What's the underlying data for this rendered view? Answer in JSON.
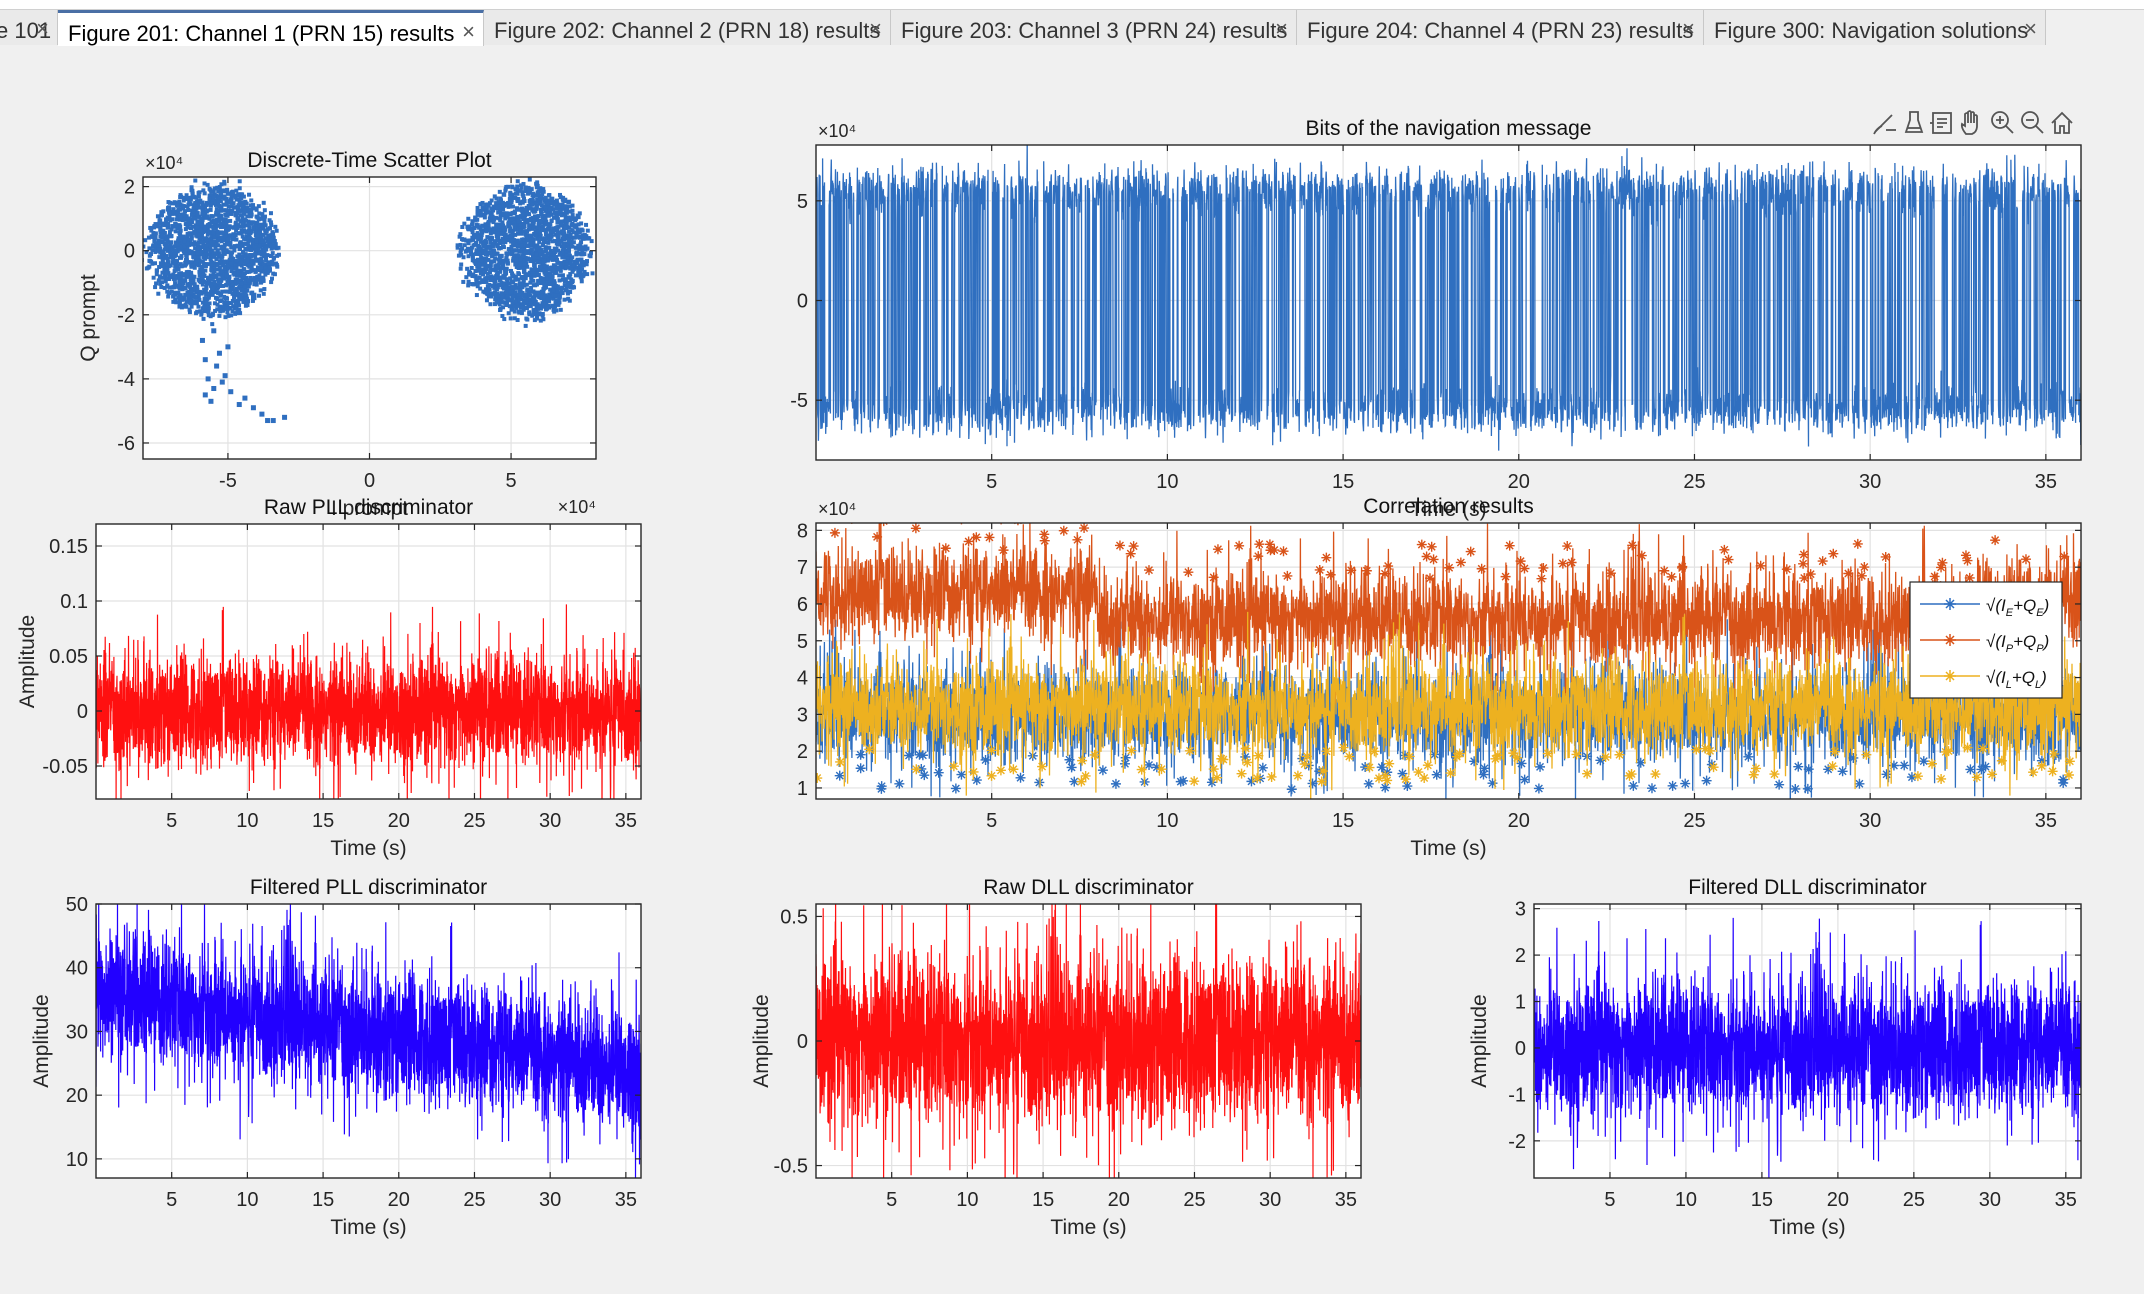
{
  "tabs": [
    {
      "label": "e 101",
      "active": false
    },
    {
      "label": "Figure 201: Channel 1 (PRN 15) results",
      "active": true
    },
    {
      "label": "Figure 202: Channel 2 (PRN 18) results",
      "active": false
    },
    {
      "label": "Figure 203: Channel 3 (PRN 24) results",
      "active": false
    },
    {
      "label": "Figure 204: Channel 4 (PRN 23) results",
      "active": false
    },
    {
      "label": "Figure 300: Navigation solutions",
      "active": false
    }
  ],
  "toolbar_icons": [
    "brush-icon",
    "eraser-icon",
    "data-tip-icon",
    "pan-hand-icon",
    "zoom-in-icon",
    "zoom-out-icon",
    "home-icon"
  ],
  "colors": {
    "blue": "#2f6fc0",
    "red": "#ff1010",
    "violet": "#2200ff",
    "orange": "#d95319",
    "yellow": "#edb120",
    "legend_blue": "#0072bd"
  },
  "chart_data": [
    {
      "id": "scatter",
      "type": "scatter",
      "title": "Discrete-Time Scatter Plot",
      "xlabel": "I prompt",
      "ylabel": "Q prompt",
      "x_exponent_label": "×10⁴",
      "y_exponent_label": "×10⁴",
      "xlim": [
        -8,
        8
      ],
      "ylim": [
        -6.5,
        2.3
      ],
      "xticks": [
        -5,
        0,
        5
      ],
      "yticks": [
        -6,
        -4,
        -2,
        0,
        2
      ],
      "grid": true,
      "clusters": [
        {
          "center": [
            -5.5,
            0
          ],
          "radius": [
            2.2,
            2.0
          ],
          "points": 1800
        },
        {
          "center": [
            5.5,
            0
          ],
          "radius": [
            2.2,
            2.0
          ],
          "points": 1800
        }
      ],
      "outliers": [
        [
          -5.5,
          -2.5
        ],
        [
          -5.9,
          -2.8
        ],
        [
          -5.0,
          -3.0
        ],
        [
          -5.3,
          -3.2
        ],
        [
          -5.8,
          -3.4
        ],
        [
          -5.4,
          -3.6
        ],
        [
          -5.1,
          -3.9
        ],
        [
          -5.7,
          -4.0
        ],
        [
          -5.2,
          -4.1
        ],
        [
          -5.5,
          -4.3
        ],
        [
          -5.8,
          -4.5
        ],
        [
          -4.9,
          -4.4
        ],
        [
          -5.6,
          -4.7
        ],
        [
          -4.6,
          -4.8
        ],
        [
          -4.1,
          -4.9
        ],
        [
          -3.8,
          -5.1
        ],
        [
          -3.4,
          -5.3
        ],
        [
          -3.0,
          -5.2
        ],
        [
          -3.6,
          -5.3
        ],
        [
          -4.4,
          -4.6
        ]
      ]
    },
    {
      "id": "navbits",
      "type": "line",
      "title": "Bits of the navigation message",
      "xlabel": "Time (s)",
      "ylabel": "",
      "y_exponent_label": "×10⁴",
      "xlim": [
        0,
        36
      ],
      "ylim": [
        -8,
        7.8
      ],
      "xticks": [
        5,
        10,
        15,
        20,
        25,
        30,
        35
      ],
      "yticks": [
        -5,
        0,
        5
      ],
      "grid": true,
      "levels": [
        5.5,
        -5.5
      ],
      "noise": 1.0
    },
    {
      "id": "rawpll",
      "type": "line",
      "title": "Raw PLL discriminator",
      "xlabel": "Time (s)",
      "ylabel": "Amplitude",
      "xlim": [
        0,
        36
      ],
      "ylim": [
        -0.08,
        0.17
      ],
      "xticks": [
        5,
        10,
        15,
        20,
        25,
        30,
        35
      ],
      "yticks": [
        -0.05,
        0,
        0.05,
        0.1,
        0.15
      ],
      "ytick_labels": [
        "-0.05",
        "0",
        "0.05",
        "0.1",
        "0.15"
      ],
      "grid": true,
      "mean": 0,
      "amplitude": 0.045
    },
    {
      "id": "corr",
      "type": "line",
      "title": "Correlation results",
      "xlabel": "Time (s)",
      "ylabel": "",
      "y_exponent_label": "×10⁴",
      "xlim": [
        0,
        36
      ],
      "ylim": [
        0.7,
        8.2
      ],
      "xticks": [
        5,
        10,
        15,
        20,
        25,
        30,
        35
      ],
      "yticks": [
        1,
        2,
        3,
        4,
        5,
        6,
        7,
        8
      ],
      "grid": true,
      "legend_placement": "top-right",
      "series": [
        {
          "legend": [
            "√(I",
            "E",
            "+Q",
            "E",
            ")"
          ],
          "color": "#2f6fc0",
          "mean": 3.0,
          "amplitude": 1.2
        },
        {
          "legend": [
            "√(I",
            "P",
            "+Q",
            "P",
            ")"
          ],
          "color": "#d95319",
          "mean_segments": [
            [
              0,
              8,
              6.3
            ],
            [
              8,
              33,
              5.6
            ],
            [
              33,
              36,
              6.0
            ]
          ],
          "amplitude": 1.2
        },
        {
          "legend": [
            "√(I",
            "L",
            "+Q",
            "L",
            ")"
          ],
          "color": "#edb120",
          "mean": 3.2,
          "amplitude": 1.2
        }
      ]
    },
    {
      "id": "filtpll",
      "type": "line",
      "title": "Filtered PLL discriminator",
      "xlabel": "Time (s)",
      "ylabel": "Amplitude",
      "xlim": [
        0,
        36
      ],
      "ylim": [
        7,
        50
      ],
      "xticks": [
        5,
        10,
        15,
        20,
        25,
        30,
        35
      ],
      "yticks": [
        10,
        20,
        30,
        40,
        50
      ],
      "grid": true,
      "mean_start": 36,
      "mean_end": 24,
      "amplitude": 9
    },
    {
      "id": "rawdll",
      "type": "line",
      "title": "Raw DLL discriminator",
      "xlabel": "Time (s)",
      "ylabel": "Amplitude",
      "xlim": [
        0,
        36
      ],
      "ylim": [
        -0.55,
        0.55
      ],
      "xticks": [
        5,
        10,
        15,
        20,
        25,
        30,
        35
      ],
      "yticks": [
        -0.5,
        0,
        0.5
      ],
      "grid": true,
      "mean": 0,
      "amplitude": 0.3
    },
    {
      "id": "filtdll",
      "type": "line",
      "title": "Filtered DLL discriminator",
      "xlabel": "Time (s)",
      "ylabel": "Amplitude",
      "xlim": [
        0,
        36
      ],
      "ylim": [
        -2.8,
        3.1
      ],
      "xticks": [
        5,
        10,
        15,
        20,
        25,
        30,
        35
      ],
      "yticks": [
        -2,
        -1,
        0,
        1,
        2,
        3
      ],
      "grid": true,
      "mean": 0,
      "amplitude": 1.3
    }
  ]
}
